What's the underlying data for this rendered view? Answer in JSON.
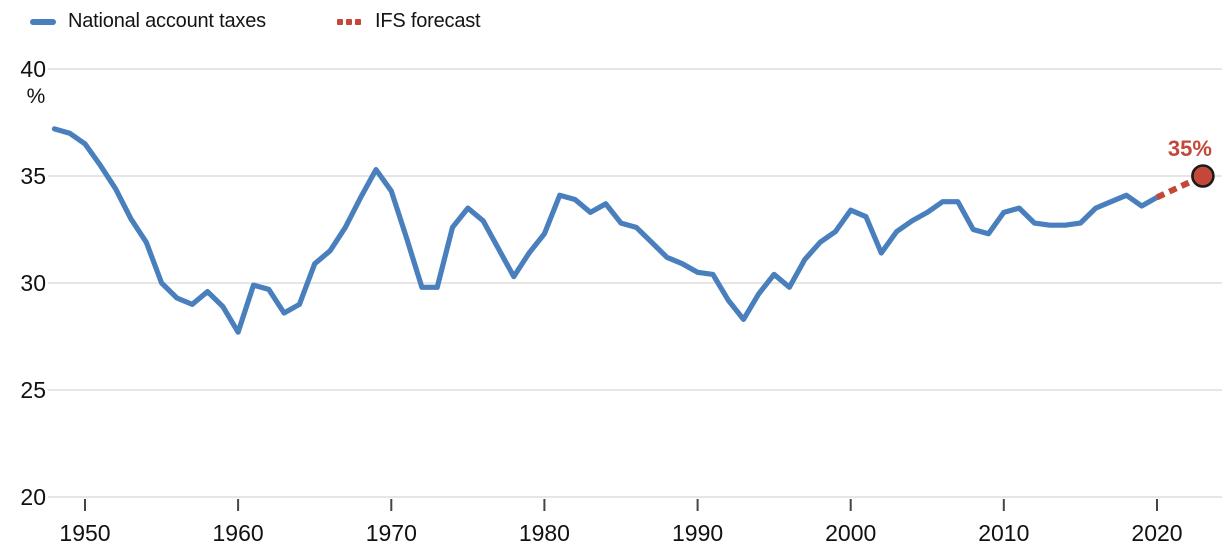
{
  "legend": {
    "items": [
      {
        "label": "National account taxes",
        "marker": "solid-line"
      },
      {
        "label": "IFS forecast",
        "marker": "dotted-line"
      }
    ]
  },
  "colors": {
    "series": "#4a7fbe",
    "forecast": "#c4483a",
    "grid": "#d7d7d7",
    "axis_text": "#111111",
    "tick_mark": "#444444",
    "dot_outline": "#1c1c1c"
  },
  "y_axis": {
    "unit": "%",
    "ticks": [
      40,
      35,
      30,
      25,
      20
    ]
  },
  "x_axis": {
    "ticks": [
      1950,
      1960,
      1970,
      1980,
      1990,
      2000,
      2010,
      2020
    ]
  },
  "annotation": {
    "forecast_value_label": "35%"
  },
  "chart_data": {
    "type": "line",
    "title": "",
    "x": [
      1948,
      1949,
      1950,
      1951,
      1952,
      1953,
      1954,
      1955,
      1956,
      1957,
      1958,
      1959,
      1960,
      1961,
      1962,
      1963,
      1964,
      1965,
      1966,
      1967,
      1968,
      1969,
      1970,
      1971,
      1972,
      1973,
      1974,
      1975,
      1976,
      1977,
      1978,
      1979,
      1980,
      1981,
      1982,
      1983,
      1984,
      1985,
      1986,
      1987,
      1988,
      1989,
      1990,
      1991,
      1992,
      1993,
      1994,
      1995,
      1996,
      1997,
      1998,
      1999,
      2000,
      2001,
      2002,
      2003,
      2004,
      2005,
      2006,
      2007,
      2008,
      2009,
      2010,
      2011,
      2012,
      2013,
      2014,
      2015,
      2016,
      2017,
      2018,
      2019,
      2020
    ],
    "series": [
      {
        "name": "National account taxes",
        "style": "solid",
        "color": "#4a7fbe",
        "values": [
          37.2,
          37.0,
          36.5,
          35.5,
          34.4,
          33.0,
          31.9,
          30.0,
          29.3,
          29.0,
          29.6,
          28.9,
          27.7,
          29.9,
          29.7,
          28.6,
          29.0,
          30.9,
          31.5,
          32.6,
          34.0,
          35.3,
          34.3,
          32.1,
          29.8,
          29.8,
          32.6,
          33.5,
          32.9,
          31.6,
          30.3,
          31.4,
          32.3,
          34.1,
          33.9,
          33.3,
          33.7,
          32.8,
          32.6,
          31.9,
          31.2,
          30.9,
          30.5,
          30.4,
          29.2,
          28.3,
          29.5,
          30.4,
          29.8,
          31.1,
          31.9,
          32.4,
          33.4,
          33.1,
          31.4,
          32.4,
          32.9,
          33.3,
          33.8,
          33.8,
          32.5,
          32.3,
          33.3,
          33.5,
          32.8,
          32.7,
          32.7,
          32.8,
          33.5,
          33.8,
          34.1,
          33.6,
          34.0
        ]
      },
      {
        "name": "IFS forecast",
        "style": "dashed",
        "color": "#c4483a",
        "x": [
          2020,
          2023
        ],
        "values": [
          34.0,
          35.0
        ],
        "endpoint_dot": {
          "year": 2023,
          "value": 35.0,
          "label": "35%"
        }
      }
    ],
    "xlabel": "",
    "ylabel": "%",
    "xlim": [
      1948,
      2024
    ],
    "ylim": [
      20,
      40
    ],
    "x_ticks": [
      1950,
      1960,
      1970,
      1980,
      1990,
      2000,
      2010,
      2020
    ],
    "y_ticks": [
      40,
      35,
      30,
      25,
      20
    ],
    "grid": "horizontal",
    "legend_position": "top-left"
  }
}
